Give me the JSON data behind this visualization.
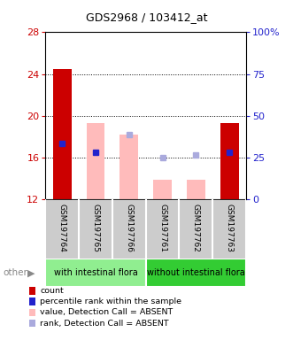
{
  "title": "GDS2968 / 103412_at",
  "samples": [
    "GSM197764",
    "GSM197765",
    "GSM197766",
    "GSM197761",
    "GSM197762",
    "GSM197763"
  ],
  "bar_bottom": 12,
  "bar_tops": [
    24.5,
    19.3,
    18.2,
    13.8,
    13.8,
    19.3
  ],
  "bar_colors": [
    "#cc0000",
    "#ffbbbb",
    "#ffbbbb",
    "#ffbbbb",
    "#ffbbbb",
    "#cc0000"
  ],
  "rank_markers": [
    17.3,
    16.5,
    18.2,
    16.0,
    16.2,
    16.5
  ],
  "rank_marker_colors": [
    "#2222cc",
    "#2222cc",
    "#aaaadd",
    "#aaaadd",
    "#aaaadd",
    "#2222cc"
  ],
  "rank_marker_is_absent": [
    false,
    false,
    true,
    true,
    true,
    false
  ],
  "ylim_min": 12,
  "ylim_max": 28,
  "yticks_left": [
    12,
    16,
    20,
    24,
    28
  ],
  "right_tick_labels": [
    "0",
    "25",
    "50",
    "75",
    "100%"
  ],
  "left_color": "#cc0000",
  "right_color": "#2222cc",
  "group_label_left": "with intestinal flora",
  "group_label_right": "without intestinal flora",
  "group_color_left": "#90ee90",
  "group_color_right": "#33cc33",
  "other_label": "other",
  "legend_items": [
    {
      "label": "count",
      "color": "#cc0000"
    },
    {
      "label": "percentile rank within the sample",
      "color": "#2222cc"
    },
    {
      "label": "value, Detection Call = ABSENT",
      "color": "#ffbbbb"
    },
    {
      "label": "rank, Detection Call = ABSENT",
      "color": "#aaaadd"
    }
  ]
}
